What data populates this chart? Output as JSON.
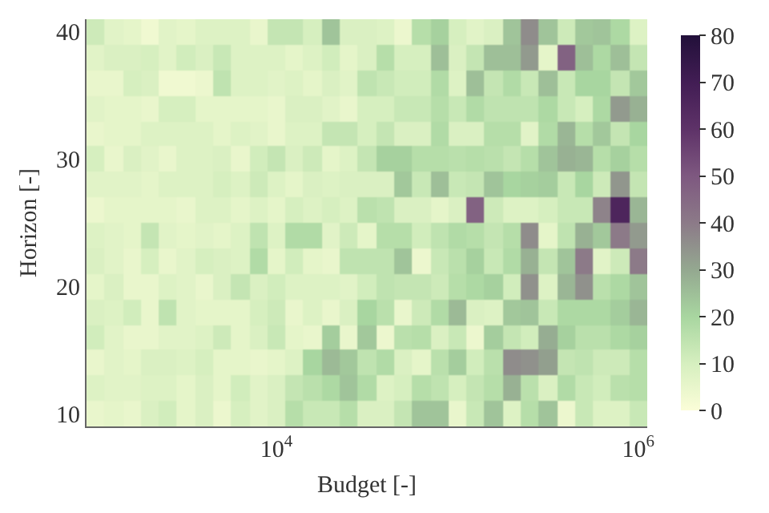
{
  "chart_data": {
    "type": "heatmap",
    "xlabel": "Budget [-]",
    "ylabel": "Horizon [-]",
    "log": "x",
    "x": [
      1000,
      1259,
      1585,
      1995,
      2512,
      3162,
      3981,
      5012,
      6310,
      7943,
      10000,
      12589,
      15849,
      19953,
      25119,
      31623,
      39811,
      50119,
      63096,
      79433,
      100000,
      125893,
      158489,
      199526,
      251189,
      316228,
      398107,
      501187,
      630957,
      794328,
      1000000
    ],
    "y": [
      40,
      38,
      36,
      34,
      32,
      30,
      28,
      26,
      24,
      22,
      20,
      18,
      16,
      14,
      12,
      10
    ],
    "xlim": [
      891,
      1122018
    ],
    "xticks": [
      {
        "value": 10000,
        "label": "10$^{4}$"
      },
      {
        "value": 1000000,
        "label": "10$^{6}$"
      }
    ],
    "ylim": [
      9,
      41
    ],
    "yticks": [
      10,
      20,
      30,
      40
    ],
    "clim": [
      0,
      80
    ],
    "cticks": [
      0,
      10,
      20,
      30,
      40,
      50,
      60,
      70,
      80
    ],
    "cells": [
      [
        12,
        7,
        6,
        3,
        7,
        6,
        8,
        8,
        8,
        5,
        14,
        14,
        10,
        24,
        9,
        9,
        8,
        4,
        17,
        21,
        10,
        7,
        9,
        24,
        36,
        24,
        12,
        23,
        24,
        19,
        8
      ],
      [
        7,
        9,
        9,
        10,
        7,
        11,
        9,
        13,
        8,
        8,
        8,
        6,
        8,
        11,
        6,
        9,
        17,
        10,
        10,
        25,
        9,
        14,
        25,
        25,
        33,
        6,
        47,
        25,
        19,
        25,
        14
      ],
      [
        5,
        5,
        10,
        9,
        3,
        3,
        4,
        15,
        8,
        8,
        7,
        8,
        6,
        9,
        7,
        15,
        13,
        11,
        11,
        18,
        8,
        25,
        14,
        18,
        13,
        25,
        13,
        20,
        20,
        14,
        23
      ],
      [
        7,
        6,
        6,
        5,
        10,
        10,
        6,
        6,
        6,
        6,
        5,
        9,
        9,
        7,
        5,
        10,
        10,
        13,
        13,
        17,
        13,
        18,
        15,
        15,
        15,
        19,
        13,
        10,
        19,
        33,
        28
      ],
      [
        5,
        6,
        6,
        8,
        8,
        8,
        8,
        6,
        8,
        7,
        5,
        8,
        8,
        14,
        14,
        10,
        14,
        9,
        9,
        18,
        9,
        9,
        17,
        17,
        7,
        18,
        27,
        17,
        23,
        14,
        20
      ],
      [
        10,
        5,
        9,
        7,
        5,
        8,
        8,
        9,
        5,
        11,
        14,
        9,
        12,
        6,
        8,
        14,
        21,
        21,
        17,
        17,
        16,
        17,
        16,
        14,
        17,
        24,
        28,
        27,
        17,
        21,
        17
      ],
      [
        7,
        7,
        7,
        6,
        8,
        8,
        8,
        10,
        8,
        12,
        8,
        6,
        9,
        8,
        9,
        9,
        9,
        23,
        13,
        25,
        13,
        14,
        24,
        20,
        21,
        22,
        13,
        20,
        12,
        34,
        14
      ],
      [
        4,
        6,
        6,
        6,
        6,
        5,
        8,
        8,
        6,
        8,
        6,
        10,
        8,
        10,
        8,
        16,
        15,
        9,
        9,
        6,
        9,
        47,
        12,
        8,
        8,
        10,
        13,
        13,
        38,
        66,
        27
      ],
      [
        8,
        7,
        6,
        14,
        7,
        6,
        7,
        6,
        8,
        15,
        8,
        18,
        18,
        7,
        12,
        6,
        17,
        17,
        11,
        15,
        18,
        17,
        14,
        17,
        36,
        6,
        15,
        28,
        23,
        40,
        33
      ],
      [
        9,
        7,
        5,
        10,
        5,
        7,
        10,
        9,
        8,
        18,
        6,
        11,
        6,
        5,
        15,
        15,
        15,
        24,
        4,
        13,
        16,
        21,
        13,
        18,
        28,
        14,
        24,
        40,
        7,
        12,
        40
      ],
      [
        6,
        9,
        5,
        5,
        8,
        7,
        5,
        9,
        14,
        9,
        11,
        8,
        8,
        8,
        7,
        11,
        15,
        14,
        14,
        12,
        17,
        19,
        21,
        11,
        35,
        8,
        27,
        35,
        16,
        19,
        24
      ],
      [
        9,
        8,
        11,
        5,
        15,
        7,
        6,
        6,
        6,
        10,
        12,
        5,
        8,
        5,
        9,
        20,
        16,
        5,
        12,
        18,
        26,
        9,
        8,
        23,
        24,
        13,
        19,
        19,
        19,
        22,
        27
      ],
      [
        11,
        7,
        5,
        5,
        7,
        7,
        8,
        12,
        6,
        9,
        13,
        6,
        5,
        22,
        5,
        23,
        4,
        16,
        17,
        9,
        13,
        4,
        22,
        14,
        11,
        29,
        21,
        16,
        16,
        19,
        21
      ],
      [
        5,
        7,
        6,
        9,
        9,
        8,
        10,
        6,
        6,
        5,
        6,
        8,
        20,
        26,
        23,
        15,
        18,
        9,
        6,
        16,
        22,
        11,
        16,
        36,
        35,
        32,
        14,
        15,
        12,
        12,
        17
      ],
      [
        8,
        7,
        7,
        8,
        8,
        6,
        9,
        6,
        11,
        7,
        9,
        14,
        16,
        19,
        24,
        18,
        8,
        10,
        17,
        15,
        10,
        14,
        17,
        28,
        16,
        9,
        18,
        13,
        11,
        16,
        17
      ],
      [
        5,
        6,
        5,
        9,
        11,
        6,
        9,
        4,
        10,
        7,
        9,
        17,
        13,
        13,
        17,
        9,
        9,
        14,
        24,
        24,
        5,
        13,
        24,
        8,
        17,
        24,
        4,
        13,
        8,
        8,
        13
      ]
    ]
  }
}
